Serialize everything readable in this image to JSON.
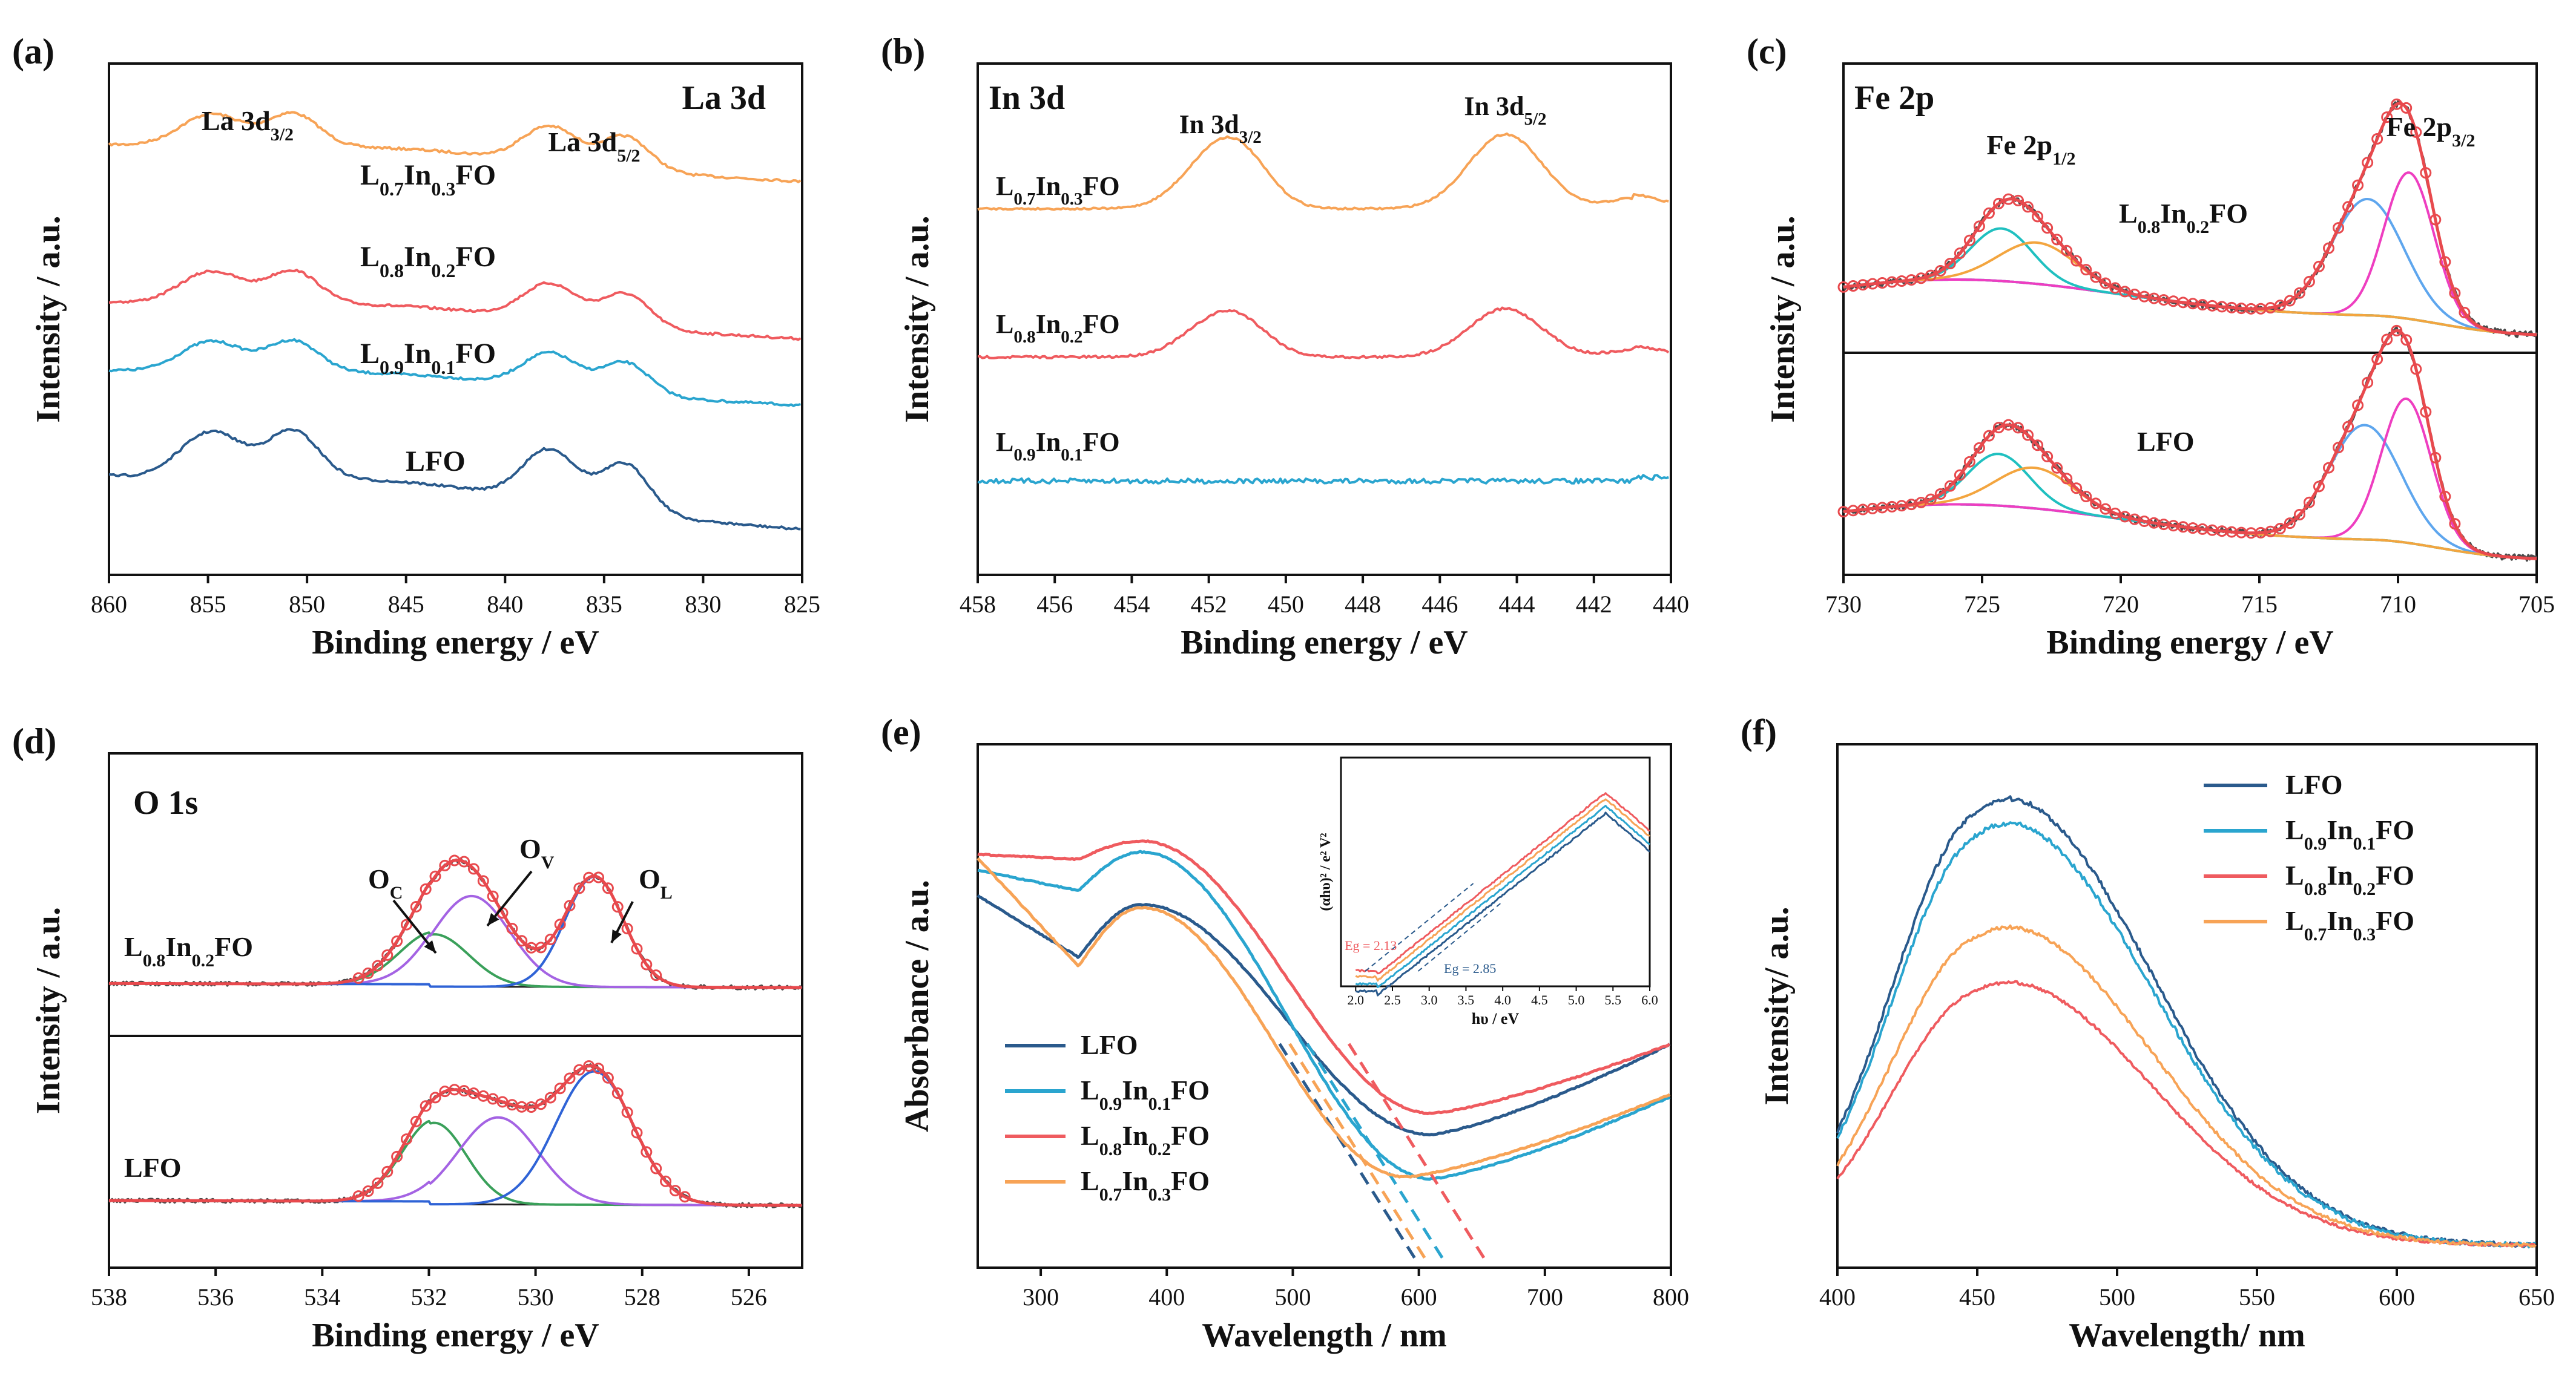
{
  "colors": {
    "LFO": "#2a5a8c",
    "L0.9": "#2aa5cf",
    "L0.8": "#ef5b5f",
    "L0.7": "#f7a356",
    "raw": "#4a4a4a",
    "fit": "#e8494d",
    "fit_cyan": "#20c0c0",
    "fit_orange": "#f3a53f",
    "fit_blue": "#5ea6ee",
    "fit_magenta": "#ee3ec0",
    "fit_green": "#3aa05a",
    "fit_violet": "#a463e3",
    "fit_dkblue": "#2f63d6",
    "base": "#2a3a8a"
  },
  "chart_data": [
    {
      "panel": "(a)",
      "type": "line",
      "title": "La 3d",
      "xlabel": "Binding energy / eV",
      "ylabel": "Intensity / a.u.",
      "xlim": [
        860,
        825
      ],
      "xticks": [
        860,
        855,
        850,
        845,
        840,
        835,
        830,
        825
      ],
      "peak_labels": [
        {
          "main": "La 3d",
          "sub": "3/2",
          "tail": ""
        },
        {
          "main": "La 3d",
          "sub": "5/2",
          "tail": ""
        }
      ],
      "series": [
        {
          "name": "L0.7In0.3FO",
          "label": [
            [
              "L",
              "n"
            ],
            [
              "0.7",
              "s"
            ],
            [
              "In",
              "n"
            ],
            [
              "0.3",
              "s"
            ],
            [
              "FO",
              "n"
            ]
          ],
          "color_key": "L0.7",
          "offset": 3,
          "amp": 1.0
        },
        {
          "name": "L0.8In0.2FO",
          "label": [
            [
              "L",
              "n"
            ],
            [
              "0.8",
              "s"
            ],
            [
              "In",
              "n"
            ],
            [
              "0.2",
              "s"
            ],
            [
              "FO",
              "n"
            ]
          ],
          "color_key": "L0.8",
          "offset": 2,
          "amp": 1.0
        },
        {
          "name": "L0.9In0.1FO",
          "label": [
            [
              "L",
              "n"
            ],
            [
              "0.9",
              "s"
            ],
            [
              "In",
              "n"
            ],
            [
              "0.1",
              "s"
            ],
            [
              "FO",
              "n"
            ]
          ],
          "color_key": "L0.9",
          "offset": 1,
          "amp": 0.95
        },
        {
          "name": "LFO",
          "label": [
            [
              "LFO",
              "n"
            ]
          ],
          "color_key": "LFO",
          "offset": 0,
          "amp": 1.45
        }
      ],
      "peaks_eV": [
        854.8,
        850.7,
        837.7,
        833.9
      ]
    },
    {
      "panel": "(b)",
      "type": "line",
      "title": "In 3d",
      "xlabel": "Binding energy / eV",
      "ylabel": "Intensity / a.u.",
      "xlim": [
        458,
        440
      ],
      "xticks": [
        458,
        456,
        454,
        452,
        450,
        448,
        446,
        444,
        442,
        440
      ],
      "peak_labels": [
        {
          "main": "In 3d",
          "sub": "3/2",
          "tail": ""
        },
        {
          "main": "In 3d",
          "sub": "5/2",
          "tail": ""
        }
      ],
      "series": [
        {
          "name": "L0.7In0.3FO",
          "label": [
            [
              "L",
              "n"
            ],
            [
              "0.7",
              "s"
            ],
            [
              "In",
              "n"
            ],
            [
              "0.3",
              "s"
            ],
            [
              "FO",
              "n"
            ]
          ],
          "color_key": "L0.7"
        },
        {
          "name": "L0.8In0.2FO",
          "label": [
            [
              "L",
              "n"
            ],
            [
              "0.8",
              "s"
            ],
            [
              "In",
              "n"
            ],
            [
              "0.2",
              "s"
            ],
            [
              "FO",
              "n"
            ]
          ],
          "color_key": "L0.8"
        },
        {
          "name": "L0.9In0.1FO",
          "label": [
            [
              "L",
              "n"
            ],
            [
              "0.9",
              "s"
            ],
            [
              "In",
              "n"
            ],
            [
              "0.1",
              "s"
            ],
            [
              "FO",
              "n"
            ]
          ],
          "color_key": "L0.9"
        }
      ],
      "peaks_eV": [
        451.7,
        444.3
      ]
    },
    {
      "panel": "(c)",
      "type": "line",
      "title": "Fe 2p",
      "xlabel": "Binding energy / eV",
      "ylabel": "Intensity / a.u.",
      "xlim": [
        730,
        705
      ],
      "xticks": [
        730,
        725,
        720,
        715,
        710,
        705
      ],
      "peak_labels": [
        {
          "main": "Fe 2p",
          "sub": "1/2",
          "tail": ""
        },
        {
          "main": "Fe 2p",
          "sub": "3/2",
          "tail": ""
        }
      ],
      "subplots": [
        {
          "sample": [
            [
              "L",
              "n"
            ],
            [
              "0.8",
              "s"
            ],
            [
              "In",
              "n"
            ],
            [
              "0.2",
              "s"
            ],
            [
              "FO",
              "n"
            ]
          ],
          "components_eV": [
            711.1,
            709.6,
            724.3,
            723.0
          ],
          "component_keys": [
            "fit_blue",
            "fit_magenta",
            "fit_cyan",
            "fit_orange"
          ]
        },
        {
          "sample": [
            [
              "LFO",
              "n"
            ]
          ],
          "components_eV": [
            711.2,
            709.7,
            724.4,
            723.1
          ],
          "component_keys": [
            "fit_blue",
            "fit_magenta",
            "fit_cyan",
            "fit_orange"
          ]
        }
      ]
    },
    {
      "panel": "(d)",
      "type": "line",
      "title": "O 1s",
      "xlabel": "Binding energy / eV",
      "ylabel": "Intensity / a.u.",
      "xlim": [
        538,
        525
      ],
      "xticks": [
        538,
        536,
        534,
        532,
        530,
        528,
        526
      ],
      "component_labels": [
        {
          "main": "O",
          "sub": "C",
          "eV": 531.9
        },
        {
          "main": "O",
          "sub": "V",
          "eV": 531.2
        },
        {
          "main": "O",
          "sub": "L",
          "eV": 528.8
        }
      ],
      "subplots": [
        {
          "sample": [
            [
              "L",
              "n"
            ],
            [
              "0.8",
              "s"
            ],
            [
              "In",
              "n"
            ],
            [
              "0.2",
              "s"
            ],
            [
              "FO",
              "n"
            ]
          ],
          "components_eV": [
            531.9,
            531.2,
            528.9
          ],
          "component_keys": [
            "fit_green",
            "fit_violet",
            "fit_dkblue"
          ]
        },
        {
          "sample": [
            [
              "LFO",
              "n"
            ]
          ],
          "components_eV": [
            531.9,
            530.7,
            528.9
          ],
          "component_keys": [
            "fit_green",
            "fit_violet",
            "fit_dkblue"
          ]
        }
      ]
    },
    {
      "panel": "(e)",
      "type": "line",
      "xlabel": "Wavelength / nm",
      "ylabel": "Absorbance / a.u.",
      "xlim": [
        250,
        800
      ],
      "xticks": [
        300,
        400,
        500,
        600,
        700,
        800
      ],
      "series": [
        {
          "name": "LFO",
          "label": [
            [
              "LFO",
              "n"
            ]
          ],
          "color_key": "LFO",
          "edge_nm": 600
        },
        {
          "name": "L0.9In0.1FO",
          "label": [
            [
              "L",
              "n"
            ],
            [
              "0.9",
              "s"
            ],
            [
              "In",
              "n"
            ],
            [
              "0.1",
              "s"
            ],
            [
              "FO",
              "n"
            ]
          ],
          "color_key": "L0.9",
          "edge_nm": 622
        },
        {
          "name": "L0.8In0.2FO",
          "label": [
            [
              "L",
              "n"
            ],
            [
              "0.8",
              "s"
            ],
            [
              "In",
              "n"
            ],
            [
              "0.2",
              "s"
            ],
            [
              "FO",
              "n"
            ]
          ],
          "color_key": "L0.8",
          "edge_nm": 655
        },
        {
          "name": "L0.7In0.3FO",
          "label": [
            [
              "L",
              "n"
            ],
            [
              "0.7",
              "s"
            ],
            [
              "In",
              "n"
            ],
            [
              "0.3",
              "s"
            ],
            [
              "FO",
              "n"
            ]
          ],
          "color_key": "L0.7",
          "edge_nm": 608
        }
      ],
      "inset": {
        "xlabel": "hυ / eV",
        "ylabel": "(αhυ)² / e² V²",
        "xlim": [
          1.8,
          6.0
        ],
        "xticks": [
          2.0,
          2.5,
          3.0,
          3.5,
          4.0,
          4.5,
          5.0,
          5.5,
          6.0
        ],
        "annotations": [
          {
            "text": "Eg = 2.13",
            "color_key": "L0.8"
          },
          {
            "text": "Eg = 2.85",
            "color_key": "LFO"
          }
        ],
        "edges_eV": [
          2.13,
          2.85
        ]
      }
    },
    {
      "panel": "(f)",
      "type": "line",
      "xlabel": "Wavelength/ nm",
      "ylabel": "Intensity/ a.u.",
      "xlim": [
        400,
        650
      ],
      "xticks": [
        400,
        450,
        500,
        550,
        600,
        650
      ],
      "series": [
        {
          "name": "LFO",
          "label": [
            [
              "LFO",
              "n"
            ]
          ],
          "color_key": "LFO",
          "amp": 0.73
        },
        {
          "name": "L0.9In0.1FO",
          "label": [
            [
              "L",
              "n"
            ],
            [
              "0.9",
              "s"
            ],
            [
              "In",
              "n"
            ],
            [
              "0.1",
              "s"
            ],
            [
              "FO",
              "n"
            ]
          ],
          "color_key": "L0.9",
          "amp": 0.69
        },
        {
          "name": "L0.8In0.2FO",
          "label": [
            [
              "L",
              "n"
            ],
            [
              "0.8",
              "s"
            ],
            [
              "In",
              "n"
            ],
            [
              "0.2",
              "s"
            ],
            [
              "FO",
              "n"
            ]
          ],
          "color_key": "L0.8",
          "amp": 0.43
        },
        {
          "name": "L0.7In0.3FO",
          "label": [
            [
              "L",
              "n"
            ],
            [
              "0.7",
              "s"
            ],
            [
              "In",
              "n"
            ],
            [
              "0.3",
              "s"
            ],
            [
              "FO",
              "n"
            ]
          ],
          "color_key": "L0.7",
          "amp": 0.52
        }
      ],
      "peak_nm": 465
    }
  ]
}
